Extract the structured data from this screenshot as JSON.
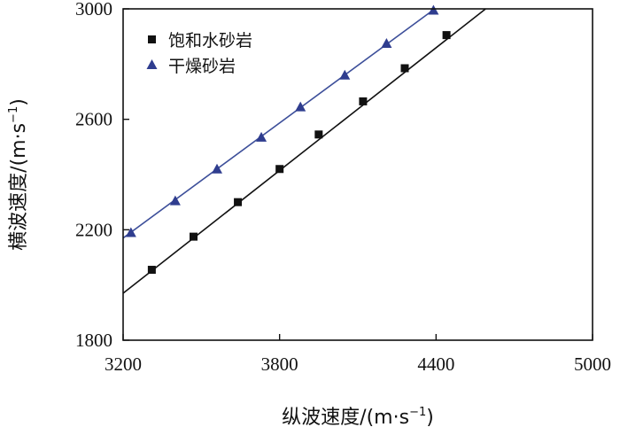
{
  "chart_data": {
    "type": "scatter",
    "x_label_main": "纵波速度/",
    "x_label_unit": "(m·s",
    "x_label_exp": "−1",
    "x_label_close": ")",
    "y_label_main": "横波速度/",
    "y_label_unit": "(m·s",
    "y_label_exp": "−1",
    "y_label_close": ")",
    "xlim": [
      3200,
      5000
    ],
    "ylim": [
      1800,
      3000
    ],
    "x_ticks": [
      3200,
      3800,
      4400,
      5000
    ],
    "y_ticks": [
      1800,
      2200,
      2600,
      3000
    ],
    "x_tick_labels": [
      "3200",
      "3800",
      "4400",
      "5000"
    ],
    "y_tick_labels": [
      "1800",
      "2200",
      "2600",
      "3000"
    ],
    "grid": false,
    "legend_position": "top-left",
    "series": [
      {
        "name": "饱和水砂岩",
        "marker": "square",
        "color": "#111111",
        "line_color": "#111111",
        "x": [
          3310,
          3470,
          3640,
          3800,
          3950,
          4120,
          4280,
          4440
        ],
        "y": [
          2055,
          2175,
          2300,
          2420,
          2545,
          2665,
          2785,
          2905
        ],
        "fit_line": {
          "x": [
            3200,
            4590
          ],
          "y": [
            1970,
            3000
          ]
        }
      },
      {
        "name": "干燥砂岩",
        "marker": "triangle",
        "color": "#2f3d8f",
        "line_color": "#3d4f9a",
        "x": [
          3230,
          3400,
          3560,
          3730,
          3880,
          4050,
          4210,
          4390
        ],
        "y": [
          2190,
          2305,
          2420,
          2535,
          2645,
          2760,
          2875,
          2995
        ],
        "fit_line": {
          "x": [
            3200,
            4395
          ],
          "y": [
            2170,
            3000
          ]
        }
      }
    ]
  }
}
